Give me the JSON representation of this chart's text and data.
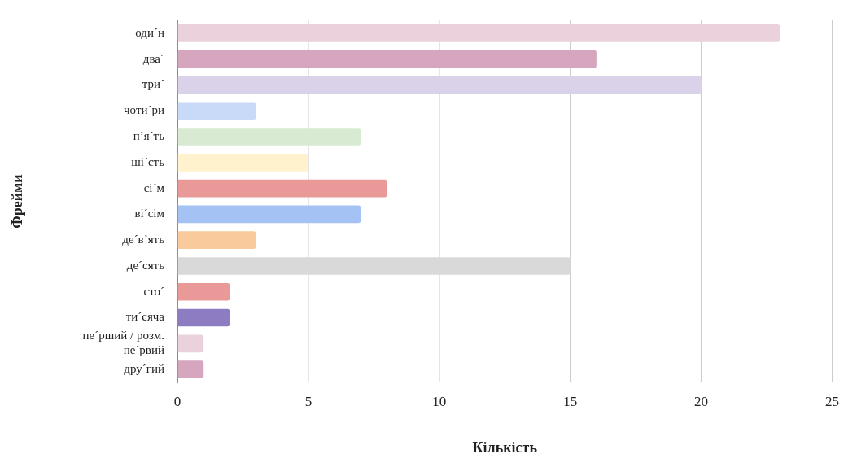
{
  "chart_data": {
    "type": "bar",
    "orientation": "horizontal",
    "xlabel": "Кількість",
    "ylabel": "Фрейми",
    "categories": [
      "оди´н",
      "два´",
      "три´",
      "чоти´ри",
      "п’я´ть",
      "ші´сть",
      "сі´м",
      "ві´сім",
      "де´в’ять",
      "де´сять",
      "сто´",
      "ти´сяча",
      "пе´рший / розм. пе´рвий",
      "дру´гий"
    ],
    "values": [
      23,
      16,
      20,
      3,
      7,
      5,
      8,
      7,
      3,
      15,
      2,
      2,
      1,
      1
    ],
    "colors": [
      "#ead1dc",
      "#d5a6bd",
      "#d9d2e9",
      "#c9daf8",
      "#d9ead3",
      "#fff2cc",
      "#ea9999",
      "#a4c2f4",
      "#f9cb9c",
      "#d9d9d9",
      "#ea9999",
      "#8e7cc3",
      "#ead1dc",
      "#d5a6bd"
    ],
    "xlim": [
      0,
      25
    ],
    "xticks": [
      0,
      5,
      10,
      15,
      20,
      25
    ],
    "grid": "x",
    "legend": false
  }
}
